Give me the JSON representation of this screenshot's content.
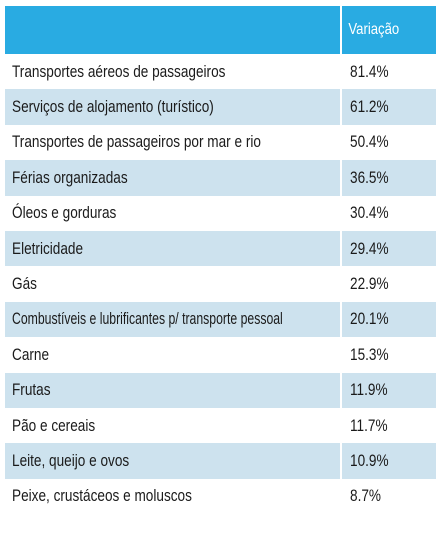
{
  "header": {
    "label_col": "",
    "value_col": "Variação"
  },
  "rows": [
    {
      "label": "Transportes aéreos de passageiros",
      "value": "81.4%"
    },
    {
      "label": "Serviços de alojamento (turístico)",
      "value": "61.2%"
    },
    {
      "label": "Transportes de passageiros por mar e rio",
      "value": "50.4%"
    },
    {
      "label": "Férias organizadas",
      "value": "36.5%"
    },
    {
      "label": "Óleos e gorduras",
      "value": "30.4%"
    },
    {
      "label": "Eletricidade",
      "value": "29.4%"
    },
    {
      "label": "Gás",
      "value": "22.9%"
    },
    {
      "label": "Combustíveis e lubrificantes p/ transporte pessoal",
      "value": "20.1%"
    },
    {
      "label": "Carne",
      "value": "15.3%"
    },
    {
      "label": "Frutas",
      "value": "11.9%"
    },
    {
      "label": "Pão e cereais",
      "value": "11.7%"
    },
    {
      "label": "Leite, queijo e ovos",
      "value": "10.9%"
    },
    {
      "label": "Peixe, crustáceos e moluscos",
      "value": "8.7%"
    }
  ],
  "colors": {
    "header_bg": "#29abe2",
    "stripe_bg": "#cde2ee",
    "text": "#1a1a1a",
    "header_text": "#ffffff"
  },
  "chart_data": {
    "type": "table",
    "columns": [
      "",
      "Variação"
    ],
    "categories": [
      "Transportes aéreos de passageiros",
      "Serviços de alojamento (turístico)",
      "Transportes de passageiros por mar e rio",
      "Férias organizadas",
      "Óleos e gorduras",
      "Eletricidade",
      "Gás",
      "Combustíveis e lubrificantes p/ transporte pessoal",
      "Carne",
      "Frutas",
      "Pão e cereais",
      "Leite, queijo e ovos",
      "Peixe, crustáceos e moluscos"
    ],
    "values": [
      81.4,
      61.2,
      50.4,
      36.5,
      30.4,
      29.4,
      22.9,
      20.1,
      15.3,
      11.9,
      11.7,
      10.9,
      8.7
    ],
    "unit": "%"
  }
}
